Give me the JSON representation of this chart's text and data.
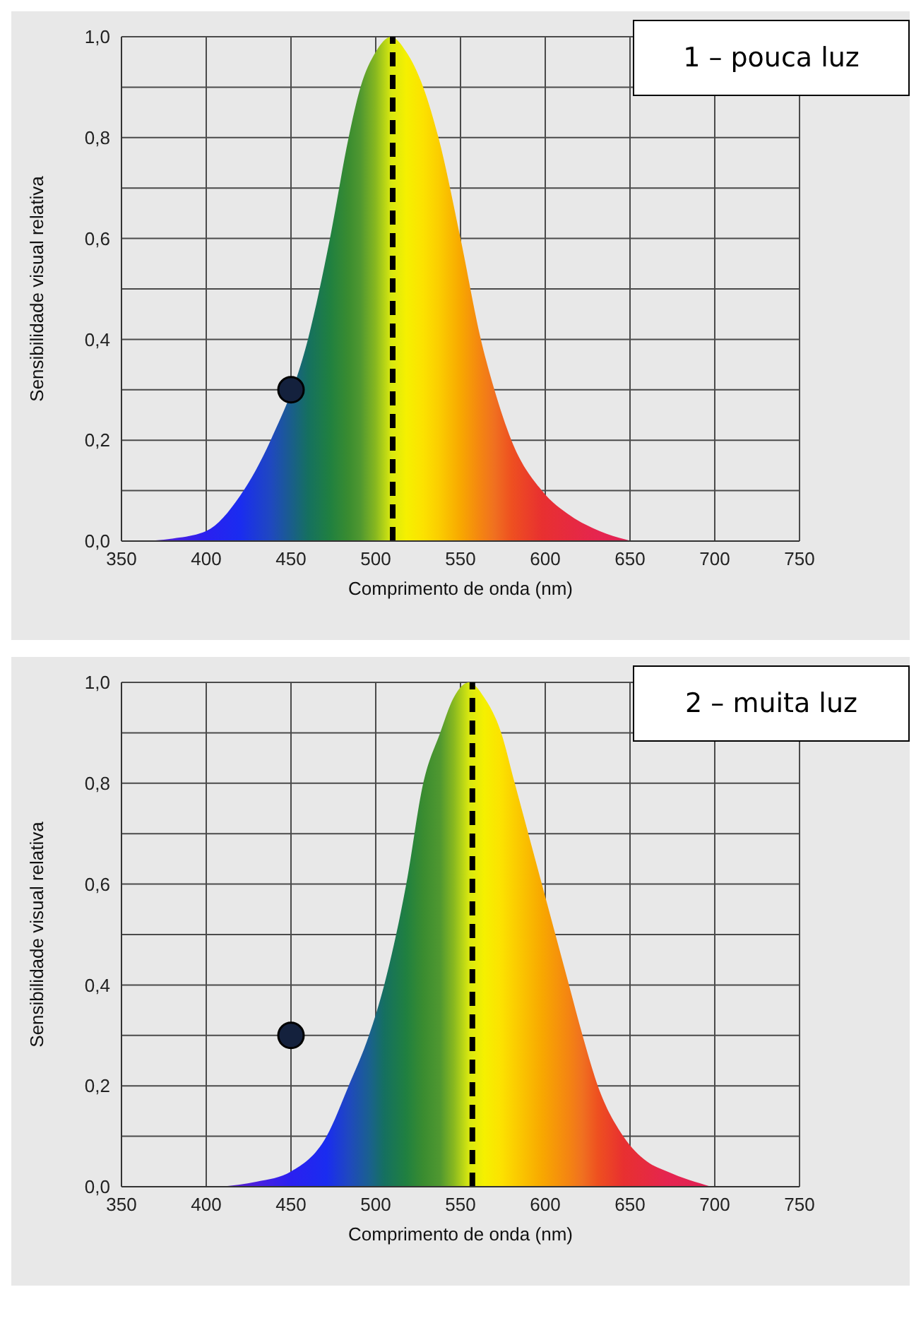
{
  "chart_data": [
    {
      "type": "area",
      "xlabel": "Comprimento de onda (nm)",
      "ylabel": "Sensibilidade visual relativa",
      "annotations": [
        "1 – pouca luz"
      ],
      "xlim": [
        350,
        750
      ],
      "xticks": [
        350,
        400,
        450,
        500,
        550,
        600,
        650,
        700,
        750
      ],
      "ylim": [
        0,
        1
      ],
      "yticks": [
        {
          "value": 0,
          "label": "0,0"
        },
        {
          "value": 0.1,
          "label": null
        },
        {
          "value": 0.2,
          "label": "0,2"
        },
        {
          "value": 0.3,
          "label": null
        },
        {
          "value": 0.4,
          "label": "0,4"
        },
        {
          "value": 0.5,
          "label": null
        },
        {
          "value": 0.6,
          "label": "0,6"
        },
        {
          "value": 0.7,
          "label": null
        },
        {
          "value": 0.8,
          "label": "0,8"
        },
        {
          "value": 0.9,
          "label": null
        },
        {
          "value": 1,
          "label": "1,0"
        }
      ],
      "grid": true,
      "ref_lines": [
        {
          "axis": "x",
          "value": 510,
          "color": "#000000",
          "line_style": "dashed"
        }
      ],
      "series": [
        {
          "x": [
            360,
            380,
            400,
            420,
            438,
            460,
            473,
            484,
            491,
            500,
            509,
            518,
            528,
            537,
            550,
            562,
            570,
            580,
            598,
            615,
            632,
            651
          ],
          "values": [
            0,
            0.005,
            0.02,
            0.09,
            0.2,
            0.4,
            0.6,
            0.8,
            0.9,
            0.97,
            1.0,
            0.97,
            0.9,
            0.8,
            0.6,
            0.4,
            0.3,
            0.2,
            0.1,
            0.05,
            0.02,
            0
          ],
          "colors": [
            "#5a20c0",
            "#4a20e0",
            "#2a20f0",
            "#1a2cf0",
            "#1f48c0",
            "#157060",
            "#208040",
            "#3a8c30",
            "#509830",
            "#88b820",
            "#d8e810",
            "#f5f000",
            "#fce200",
            "#fbce00",
            "#f8a800",
            "#f48412",
            "#f07020",
            "#ee5020",
            "#e83030",
            "#e62a40",
            "#e52550",
            "#e02255"
          ]
        },
        {
          "type": "scatter",
          "x": [
            450
          ],
          "values": [
            0.3
          ],
          "color": "#14213d",
          "marker": "circle"
        }
      ]
    },
    {
      "type": "area",
      "xlabel": "Comprimento de onda (nm)",
      "ylabel": "Sensibilidade visual relativa",
      "annotations": [
        "2 – muita luz"
      ],
      "xlim": [
        350,
        750
      ],
      "xticks": [
        350,
        400,
        450,
        500,
        550,
        600,
        650,
        700,
        750
      ],
      "ylim": [
        0,
        1
      ],
      "yticks": [
        {
          "value": 0,
          "label": "0,0"
        },
        {
          "value": 0.1,
          "label": null
        },
        {
          "value": 0.2,
          "label": "0,2"
        },
        {
          "value": 0.3,
          "label": null
        },
        {
          "value": 0.4,
          "label": "0,4"
        },
        {
          "value": 0.5,
          "label": null
        },
        {
          "value": 0.6,
          "label": "0,6"
        },
        {
          "value": 0.7,
          "label": null
        },
        {
          "value": 0.8,
          "label": "0,8"
        },
        {
          "value": 0.9,
          "label": null
        },
        {
          "value": 1,
          "label": "1,0"
        }
      ],
      "grid": true,
      "ref_lines": [
        {
          "axis": "x",
          "value": 557,
          "color": "#000000",
          "line_style": "dashed"
        }
      ],
      "series": [
        {
          "x": [
            408,
            430,
            450,
            471,
            484,
            496,
            505,
            518,
            528,
            538,
            546,
            555,
            564,
            574,
            582,
            598,
            614,
            622,
            631,
            646,
            660,
            672,
            698
          ],
          "values": [
            0,
            0.01,
            0.03,
            0.1,
            0.2,
            0.3,
            0.4,
            0.6,
            0.8,
            0.9,
            0.97,
            1.0,
            0.97,
            0.9,
            0.8,
            0.6,
            0.4,
            0.3,
            0.2,
            0.1,
            0.05,
            0.03,
            0
          ],
          "colors": [
            "#5a20c0",
            "#4a20e0",
            "#2a20f0",
            "#1a2cf0",
            "#1f48c0",
            "#1a6090",
            "#157060",
            "#208040",
            "#3a8c30",
            "#509830",
            "#88b820",
            "#d8e810",
            "#f5f000",
            "#fce200",
            "#fbce00",
            "#f8a800",
            "#f48412",
            "#f07020",
            "#ee5020",
            "#e83030",
            "#e62a40",
            "#e52550",
            "#e02255"
          ]
        },
        {
          "type": "scatter",
          "x": [
            450
          ],
          "values": [
            0.3
          ],
          "color": "#14213d",
          "marker": "circle"
        }
      ]
    }
  ]
}
